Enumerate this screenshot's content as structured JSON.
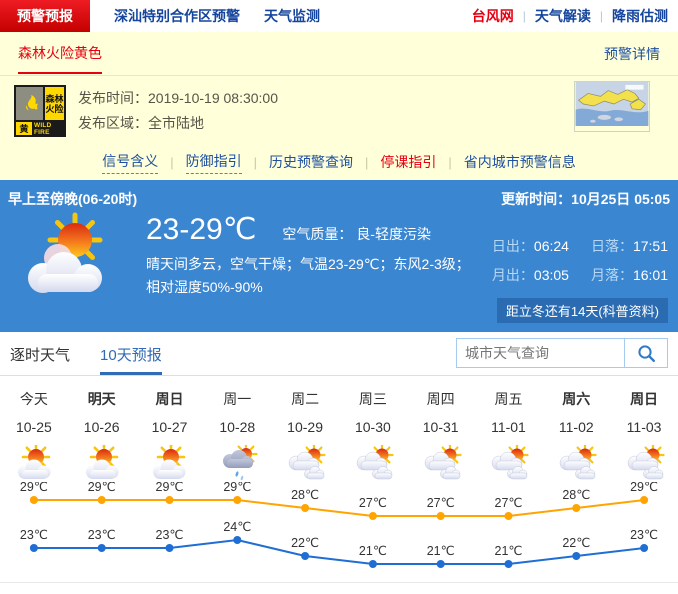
{
  "nav": {
    "tabs": [
      {
        "label": "预警预报",
        "active": true
      },
      {
        "label": "深汕特别合作区预警",
        "active": false
      },
      {
        "label": "天气监测",
        "active": false
      }
    ],
    "right_links": [
      {
        "label": "台风网",
        "accent": true
      },
      {
        "label": "天气解读",
        "accent": false
      },
      {
        "label": "降雨估测",
        "accent": false
      }
    ]
  },
  "warning": {
    "title": "森林火险黄色",
    "detail_link": "预警详情",
    "icon": {
      "name_line1": "森林",
      "name_line2": "火险",
      "level": "黄",
      "en": "WILD FIRE"
    },
    "publish_time_label": "发布时间：",
    "publish_time": "2019-10-19 08:30:00",
    "publish_area_label": "发布区域：",
    "publish_area": "全市陆地",
    "links": [
      {
        "label": "信号含义",
        "style": "dotted"
      },
      {
        "label": "防御指引",
        "style": "dotted"
      },
      {
        "label": "历史预警查询",
        "style": "plain"
      },
      {
        "label": "停课指引",
        "style": "red"
      },
      {
        "label": "省内城市预警信息",
        "style": "plain"
      }
    ]
  },
  "current": {
    "period": "早上至傍晚(06-20时)",
    "update_label": "更新时间：",
    "update_time": "10月25日 05:05",
    "temp_range": "23-29℃",
    "air_label": "空气质量： ",
    "air_value": "良-轻度污染",
    "desc_line1": "晴天间多云，空气干燥；气温23-29℃；东风2-3级；",
    "desc_line2": "相对湿度50%-90%",
    "sun_moon": [
      {
        "name": "sunrise",
        "label": "日出：",
        "value": "06:24"
      },
      {
        "name": "sunset",
        "label": "日落：",
        "value": "17:51"
      },
      {
        "name": "moonrise",
        "label": "月出：",
        "value": "03:05"
      },
      {
        "name": "moonset",
        "label": "月落：",
        "value": "16:01"
      }
    ],
    "solar_term_note": "距立冬还有14天(科普资料)"
  },
  "forecast": {
    "tabs": [
      {
        "label": "逐时天气",
        "active": false
      },
      {
        "label": "10天预报",
        "active": true
      }
    ],
    "search_placeholder": "城市天气查询",
    "days": [
      {
        "day": "今天",
        "date": "10-25",
        "bold": false,
        "icon": "partly-cloudy"
      },
      {
        "day": "明天",
        "date": "10-26",
        "bold": true,
        "icon": "partly-cloudy"
      },
      {
        "day": "周日",
        "date": "10-27",
        "bold": true,
        "icon": "partly-cloudy"
      },
      {
        "day": "周一",
        "date": "10-28",
        "bold": false,
        "icon": "showers"
      },
      {
        "day": "周二",
        "date": "10-29",
        "bold": false,
        "icon": "cloudy"
      },
      {
        "day": "周三",
        "date": "10-30",
        "bold": false,
        "icon": "cloudy"
      },
      {
        "day": "周四",
        "date": "10-31",
        "bold": false,
        "icon": "cloudy"
      },
      {
        "day": "周五",
        "date": "11-01",
        "bold": false,
        "icon": "cloudy"
      },
      {
        "day": "周六",
        "date": "11-02",
        "bold": true,
        "icon": "cloudy"
      },
      {
        "day": "周日",
        "date": "11-03",
        "bold": true,
        "icon": "cloudy"
      }
    ]
  },
  "chart_data": {
    "type": "line",
    "categories": [
      "10-25",
      "10-26",
      "10-27",
      "10-28",
      "10-29",
      "10-30",
      "10-31",
      "11-01",
      "11-02",
      "11-03"
    ],
    "series": [
      {
        "name": "high_temp",
        "color": "#ffa400",
        "values": [
          29,
          29,
          29,
          29,
          28,
          27,
          27,
          27,
          28,
          29
        ]
      },
      {
        "name": "low_temp",
        "color": "#1f6ed4",
        "values": [
          23,
          23,
          23,
          24,
          22,
          21,
          21,
          21,
          22,
          23
        ]
      }
    ],
    "unit": "℃",
    "ylim": [
      20,
      30
    ],
    "grid": false,
    "legend": "none"
  },
  "colors": {
    "accent_red": "#e60012",
    "nav_blue": "#15459d",
    "section_blue": "#3b86d1",
    "warning_yellow_bg": "#ffffd9",
    "high_line": "#ffa400",
    "low_line": "#1f6ed4"
  }
}
